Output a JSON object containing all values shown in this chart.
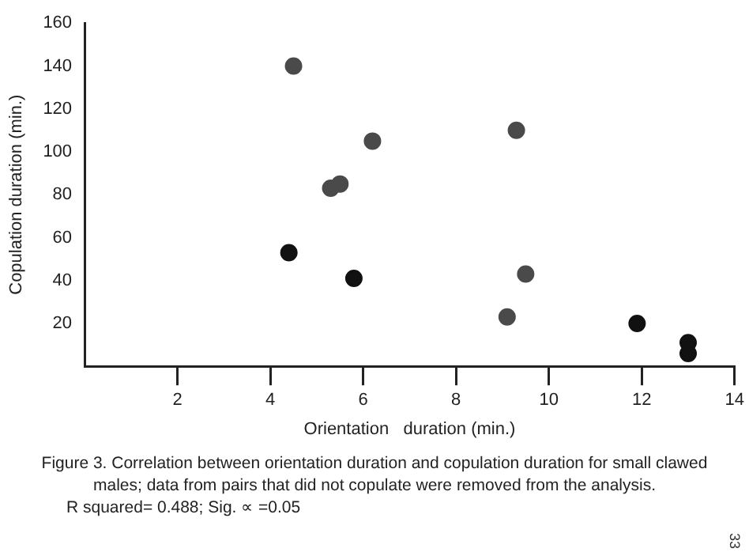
{
  "chart_data": {
    "type": "scatter",
    "xlabel": "Orientation   duration (min.)",
    "ylabel": "Copulation duration (min.)",
    "x": [
      4.5,
      5.3,
      5.5,
      6.2,
      4.4,
      5.8,
      9.3,
      9.5,
      9.1,
      11.9,
      13,
      13
    ],
    "values": [
      140,
      83,
      85,
      105,
      53,
      41,
      110,
      43,
      23,
      20,
      11,
      6
    ],
    "colors": [
      "#4a4a4a",
      "#4a4a4a",
      "#4a4a4a",
      "#4a4a4a",
      "#111111",
      "#111111",
      "#4a4a4a",
      "#4a4a4a",
      "#4a4a4a",
      "#111111",
      "#111111",
      "#111111"
    ],
    "xlim": [
      0,
      14
    ],
    "xticks": [
      2,
      4,
      6,
      8,
      10,
      12,
      14
    ],
    "ylim": [
      0,
      160
    ],
    "yticks": [
      20,
      40,
      60,
      80,
      100,
      120,
      140,
      160
    ],
    "grid": false,
    "legend": false,
    "marker": "circle",
    "annotations": [
      "Figure 3. Correlation between orientation duration and copulation duration for small clawed",
      "males; data from pairs that did not copulate were removed from the analysis.",
      "R squared= 0.488; Sig.   ∝ =0.05",
      "33"
    ]
  }
}
